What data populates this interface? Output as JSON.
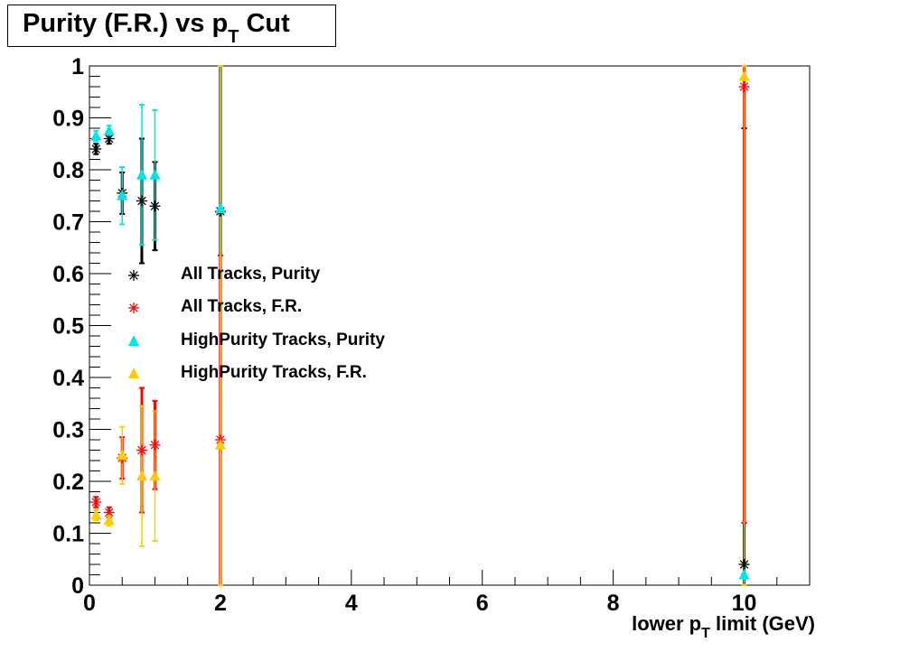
{
  "chart_data": {
    "type": "scatter",
    "title": "Purity (F.R.) vs p",
    "title_sub": "T",
    "title_suffix": " Cut",
    "xlabel": "lower p",
    "xlabel_sub": "T",
    "xlabel_suffix": " limit (GeV)",
    "ylabel": "",
    "xlim": [
      0,
      11
    ],
    "ylim": [
      0,
      1
    ],
    "x_ticks": [
      0,
      2,
      4,
      6,
      8,
      10
    ],
    "y_ticks": [
      "0",
      "0.1",
      "0.2",
      "0.3",
      "0.4",
      "0.5",
      "0.6",
      "0.7",
      "0.8",
      "0.9",
      "1"
    ],
    "grid": false,
    "legend_position": "center-left",
    "x": [
      0.1,
      0.3,
      0.5,
      0.8,
      1.0,
      2,
      10
    ],
    "series": [
      {
        "name": "All Tracks, Purity",
        "color": "#000000",
        "marker": "star",
        "values": [
          0.84,
          0.86,
          0.755,
          0.74,
          0.73,
          0.72,
          0.04
        ],
        "errors": [
          0.01,
          0.01,
          0.04,
          0.12,
          0.085,
          0.72,
          0.84
        ]
      },
      {
        "name": "All Tracks, F.R.",
        "color": "#ff0000",
        "marker": "star",
        "values": [
          0.16,
          0.14,
          0.245,
          0.26,
          0.27,
          0.28,
          0.96
        ],
        "errors": [
          0.01,
          0.01,
          0.04,
          0.12,
          0.085,
          0.355,
          0.84
        ]
      },
      {
        "name": "HighPurity Tracks, Purity",
        "color": "#00e5e5",
        "marker": "triangle",
        "values": [
          0.865,
          0.875,
          0.75,
          0.79,
          0.79,
          0.725,
          0.02
        ],
        "errors": [
          0.01,
          0.01,
          0.055,
          0.135,
          0.125,
          0.725,
          0.02
        ]
      },
      {
        "name": "HighPurity Tracks, F.R.",
        "color": "#ffcc00",
        "marker": "triangle",
        "values": [
          0.135,
          0.125,
          0.25,
          0.21,
          0.21,
          0.27,
          0.98
        ],
        "errors": [
          0.01,
          0.01,
          0.055,
          0.135,
          0.125,
          0.73,
          0.98
        ]
      }
    ]
  }
}
